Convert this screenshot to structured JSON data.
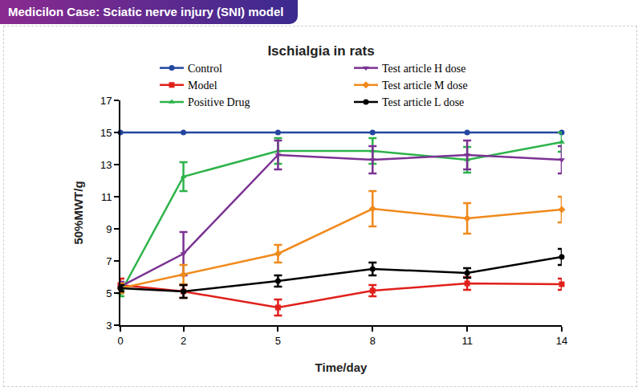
{
  "header": "Medicilon Case: Sciatic nerve injury (SNI) model",
  "chart_data": {
    "type": "line",
    "title": "Ischialgia in rats",
    "x_label": "Time/day",
    "y_label": "50%MWT/g",
    "x": [
      0,
      2,
      5,
      8,
      11,
      14
    ],
    "xlim": [
      0,
      14
    ],
    "xticks": [
      0,
      2,
      5,
      8,
      11,
      14
    ],
    "ylim": [
      3,
      17
    ],
    "yticks": [
      3,
      5,
      7,
      9,
      11,
      13,
      15,
      17
    ],
    "grid": false,
    "legend": "top",
    "series": [
      {
        "name": "Control",
        "color": "#2346a0",
        "marker": "circle",
        "values": [
          15,
          15,
          15,
          15,
          15,
          15
        ]
      },
      {
        "name": "Model",
        "color": "#e0201b",
        "marker": "square",
        "values": [
          5.5,
          5.1,
          4.1,
          5.15,
          5.6,
          5.55
        ],
        "errors": [
          0.4,
          0.4,
          0.5,
          0.35,
          0.4,
          0.35
        ]
      },
      {
        "name": "Positive Drug",
        "color": "#2db34a",
        "marker": "triangle-up",
        "values": [
          5.0,
          12.25,
          13.85,
          13.85,
          13.3,
          14.4
        ],
        "errors": [
          0.2,
          0.9,
          0.8,
          0.8,
          0.8,
          0.6
        ]
      },
      {
        "name": "Test article H dose",
        "color": "#7b3294",
        "marker": "triangle-down",
        "values": [
          5.4,
          7.45,
          13.6,
          13.3,
          13.6,
          13.3
        ],
        "errors": [
          0.3,
          1.35,
          0.9,
          0.85,
          0.9,
          0.85
        ]
      },
      {
        "name": "Test article M dose",
        "color": "#f08a1c",
        "marker": "diamond",
        "values": [
          5.3,
          6.15,
          7.45,
          10.25,
          9.65,
          10.2
        ],
        "errors": [
          0.3,
          0.6,
          0.55,
          1.1,
          0.95,
          0.8
        ]
      },
      {
        "name": "Test article L dose",
        "color": "#000000",
        "marker": "circle",
        "values": [
          5.3,
          5.1,
          5.75,
          6.5,
          6.25,
          7.25
        ],
        "errors": [
          0.2,
          0.4,
          0.35,
          0.4,
          0.3,
          0.5
        ]
      }
    ]
  }
}
